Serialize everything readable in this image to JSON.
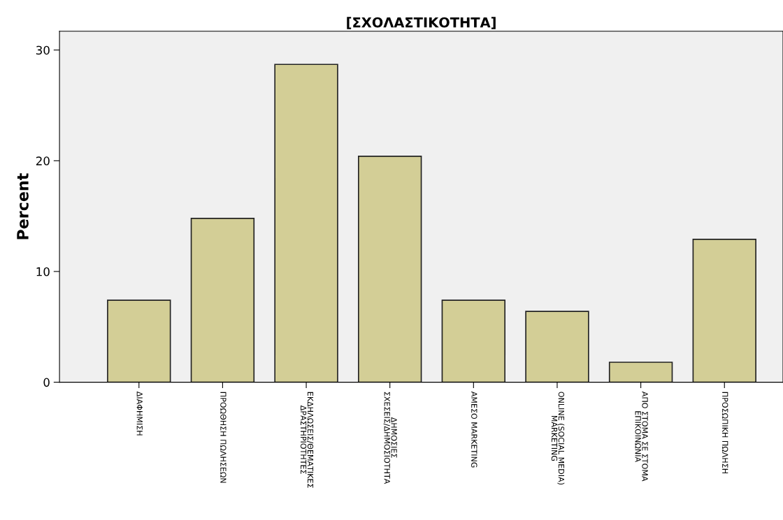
{
  "chart_data": {
    "type": "bar",
    "title": "[ΣΧΟΛΑΣΤΙΚΟΤΗΤΑ]",
    "ylabel": "Percent",
    "categories": [
      "ΔΙΑΦΗΜΙΣΗ",
      "ΠΡΟΩΘΗΣΗ ΠΩΛΗΣΕΩΝ",
      "ΕΚΔΗΛΩΣΕΙΣ/ΘΕΜΑΤΙΚΕΣ\nΔΡΑΣΤΗΡΙΟΤΗΤΕΣ",
      "ΔΗΜΟΣΙΕΣ\nΣΧΕΣΕΙΣ/ΔΗΜΟΣΙΟΤΗΤΑ",
      "ΑΜΕΣΟ MARKETING",
      "ONLINE (SOCIAL MEDIA)\nMARKETING",
      "ΑΠΟ ΣΤΟΜΑ ΣΕ ΣΤΟΜΑ\nΕΠΙΚΟΙΝΩΝΙΑ",
      "ΠΡΟΣΩΠΙΚΗ ΠΩΛΗΣΗ"
    ],
    "values": [
      7.4,
      14.8,
      28.7,
      20.4,
      7.4,
      6.4,
      1.8,
      12.9
    ],
    "color": "#d3ce96",
    "ylim": [
      0,
      31.7
    ],
    "yticks": [
      0,
      10,
      20,
      30
    ],
    "grid": false,
    "legend": false
  }
}
